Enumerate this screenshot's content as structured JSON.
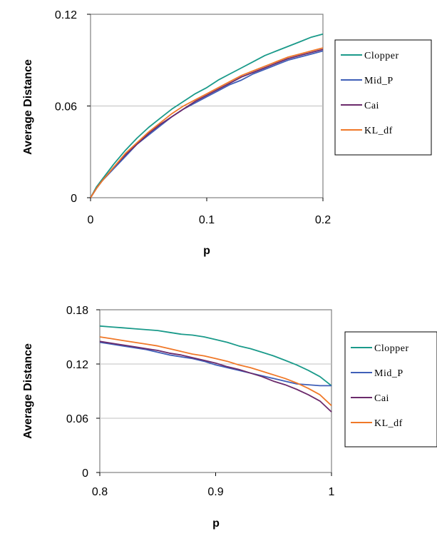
{
  "chart_data": [
    {
      "type": "line",
      "title": "",
      "xlabel": "p",
      "ylabel": "Average Distance",
      "xlim": [
        0,
        0.2
      ],
      "ylim": [
        0,
        0.12
      ],
      "x_ticks": [
        "0",
        "0.1",
        "0.2"
      ],
      "y_ticks": [
        "0",
        "0.06",
        "0.12"
      ],
      "grid": "horizontal",
      "legend_position": "right",
      "x": [
        0,
        0.005,
        0.01,
        0.02,
        0.03,
        0.04,
        0.05,
        0.06,
        0.07,
        0.08,
        0.09,
        0.1,
        0.11,
        0.12,
        0.13,
        0.14,
        0.15,
        0.16,
        0.17,
        0.18,
        0.19,
        0.2
      ],
      "series": [
        {
          "name": "Clopper",
          "color": "#1a9a8a",
          "values": [
            0,
            0.007,
            0.012,
            0.022,
            0.031,
            0.039,
            0.046,
            0.052,
            0.058,
            0.063,
            0.068,
            0.072,
            0.077,
            0.081,
            0.085,
            0.089,
            0.093,
            0.096,
            0.099,
            0.102,
            0.105,
            0.107
          ]
        },
        {
          "name": "Mid_P",
          "color": "#3f5fb8",
          "values": [
            0,
            0.006,
            0.011,
            0.019,
            0.027,
            0.035,
            0.041,
            0.047,
            0.053,
            0.058,
            0.062,
            0.066,
            0.07,
            0.074,
            0.077,
            0.081,
            0.084,
            0.087,
            0.09,
            0.092,
            0.094,
            0.096
          ]
        },
        {
          "name": "Cai",
          "color": "#6b2a6b",
          "values": [
            0,
            0.006,
            0.011,
            0.02,
            0.028,
            0.035,
            0.042,
            0.048,
            0.053,
            0.058,
            0.063,
            0.067,
            0.071,
            0.075,
            0.079,
            0.082,
            0.085,
            0.088,
            0.091,
            0.093,
            0.095,
            0.097
          ]
        },
        {
          "name": "KL_df",
          "color": "#f07828",
          "values": [
            0,
            0.006,
            0.011,
            0.02,
            0.029,
            0.036,
            0.043,
            0.049,
            0.055,
            0.06,
            0.064,
            0.068,
            0.072,
            0.076,
            0.08,
            0.083,
            0.086,
            0.089,
            0.092,
            0.094,
            0.096,
            0.098
          ]
        }
      ]
    },
    {
      "type": "line",
      "title": "",
      "xlabel": "p",
      "ylabel": "Average Distance",
      "xlim": [
        0.8,
        1
      ],
      "ylim": [
        0,
        0.18
      ],
      "x_ticks": [
        "0.8",
        "0.9",
        "1"
      ],
      "y_ticks": [
        "0",
        "0.06",
        "0.12",
        "0.18"
      ],
      "grid": "horizontal",
      "legend_position": "right",
      "x": [
        0.8,
        0.81,
        0.82,
        0.83,
        0.84,
        0.85,
        0.86,
        0.87,
        0.88,
        0.89,
        0.9,
        0.91,
        0.92,
        0.93,
        0.94,
        0.95,
        0.96,
        0.97,
        0.98,
        0.99,
        1.0
      ],
      "series": [
        {
          "name": "Clopper",
          "color": "#1a9a8a",
          "values": [
            0.162,
            0.161,
            0.16,
            0.159,
            0.158,
            0.157,
            0.155,
            0.153,
            0.152,
            0.15,
            0.147,
            0.144,
            0.14,
            0.137,
            0.133,
            0.129,
            0.124,
            0.119,
            0.113,
            0.106,
            0.096
          ]
        },
        {
          "name": "Mid_P",
          "color": "#3f5fb8",
          "values": [
            0.144,
            0.142,
            0.14,
            0.138,
            0.136,
            0.133,
            0.13,
            0.128,
            0.126,
            0.123,
            0.119,
            0.116,
            0.113,
            0.11,
            0.107,
            0.104,
            0.101,
            0.098,
            0.097,
            0.096,
            0.096
          ]
        },
        {
          "name": "Cai",
          "color": "#6b2a6b",
          "values": [
            0.145,
            0.143,
            0.141,
            0.139,
            0.137,
            0.135,
            0.132,
            0.13,
            0.127,
            0.124,
            0.121,
            0.117,
            0.114,
            0.11,
            0.106,
            0.101,
            0.097,
            0.092,
            0.086,
            0.079,
            0.067
          ]
        },
        {
          "name": "KL_df",
          "color": "#f07828",
          "values": [
            0.15,
            0.148,
            0.146,
            0.144,
            0.142,
            0.14,
            0.137,
            0.134,
            0.131,
            0.129,
            0.126,
            0.123,
            0.119,
            0.116,
            0.112,
            0.108,
            0.104,
            0.099,
            0.093,
            0.086,
            0.074
          ]
        }
      ]
    }
  ]
}
